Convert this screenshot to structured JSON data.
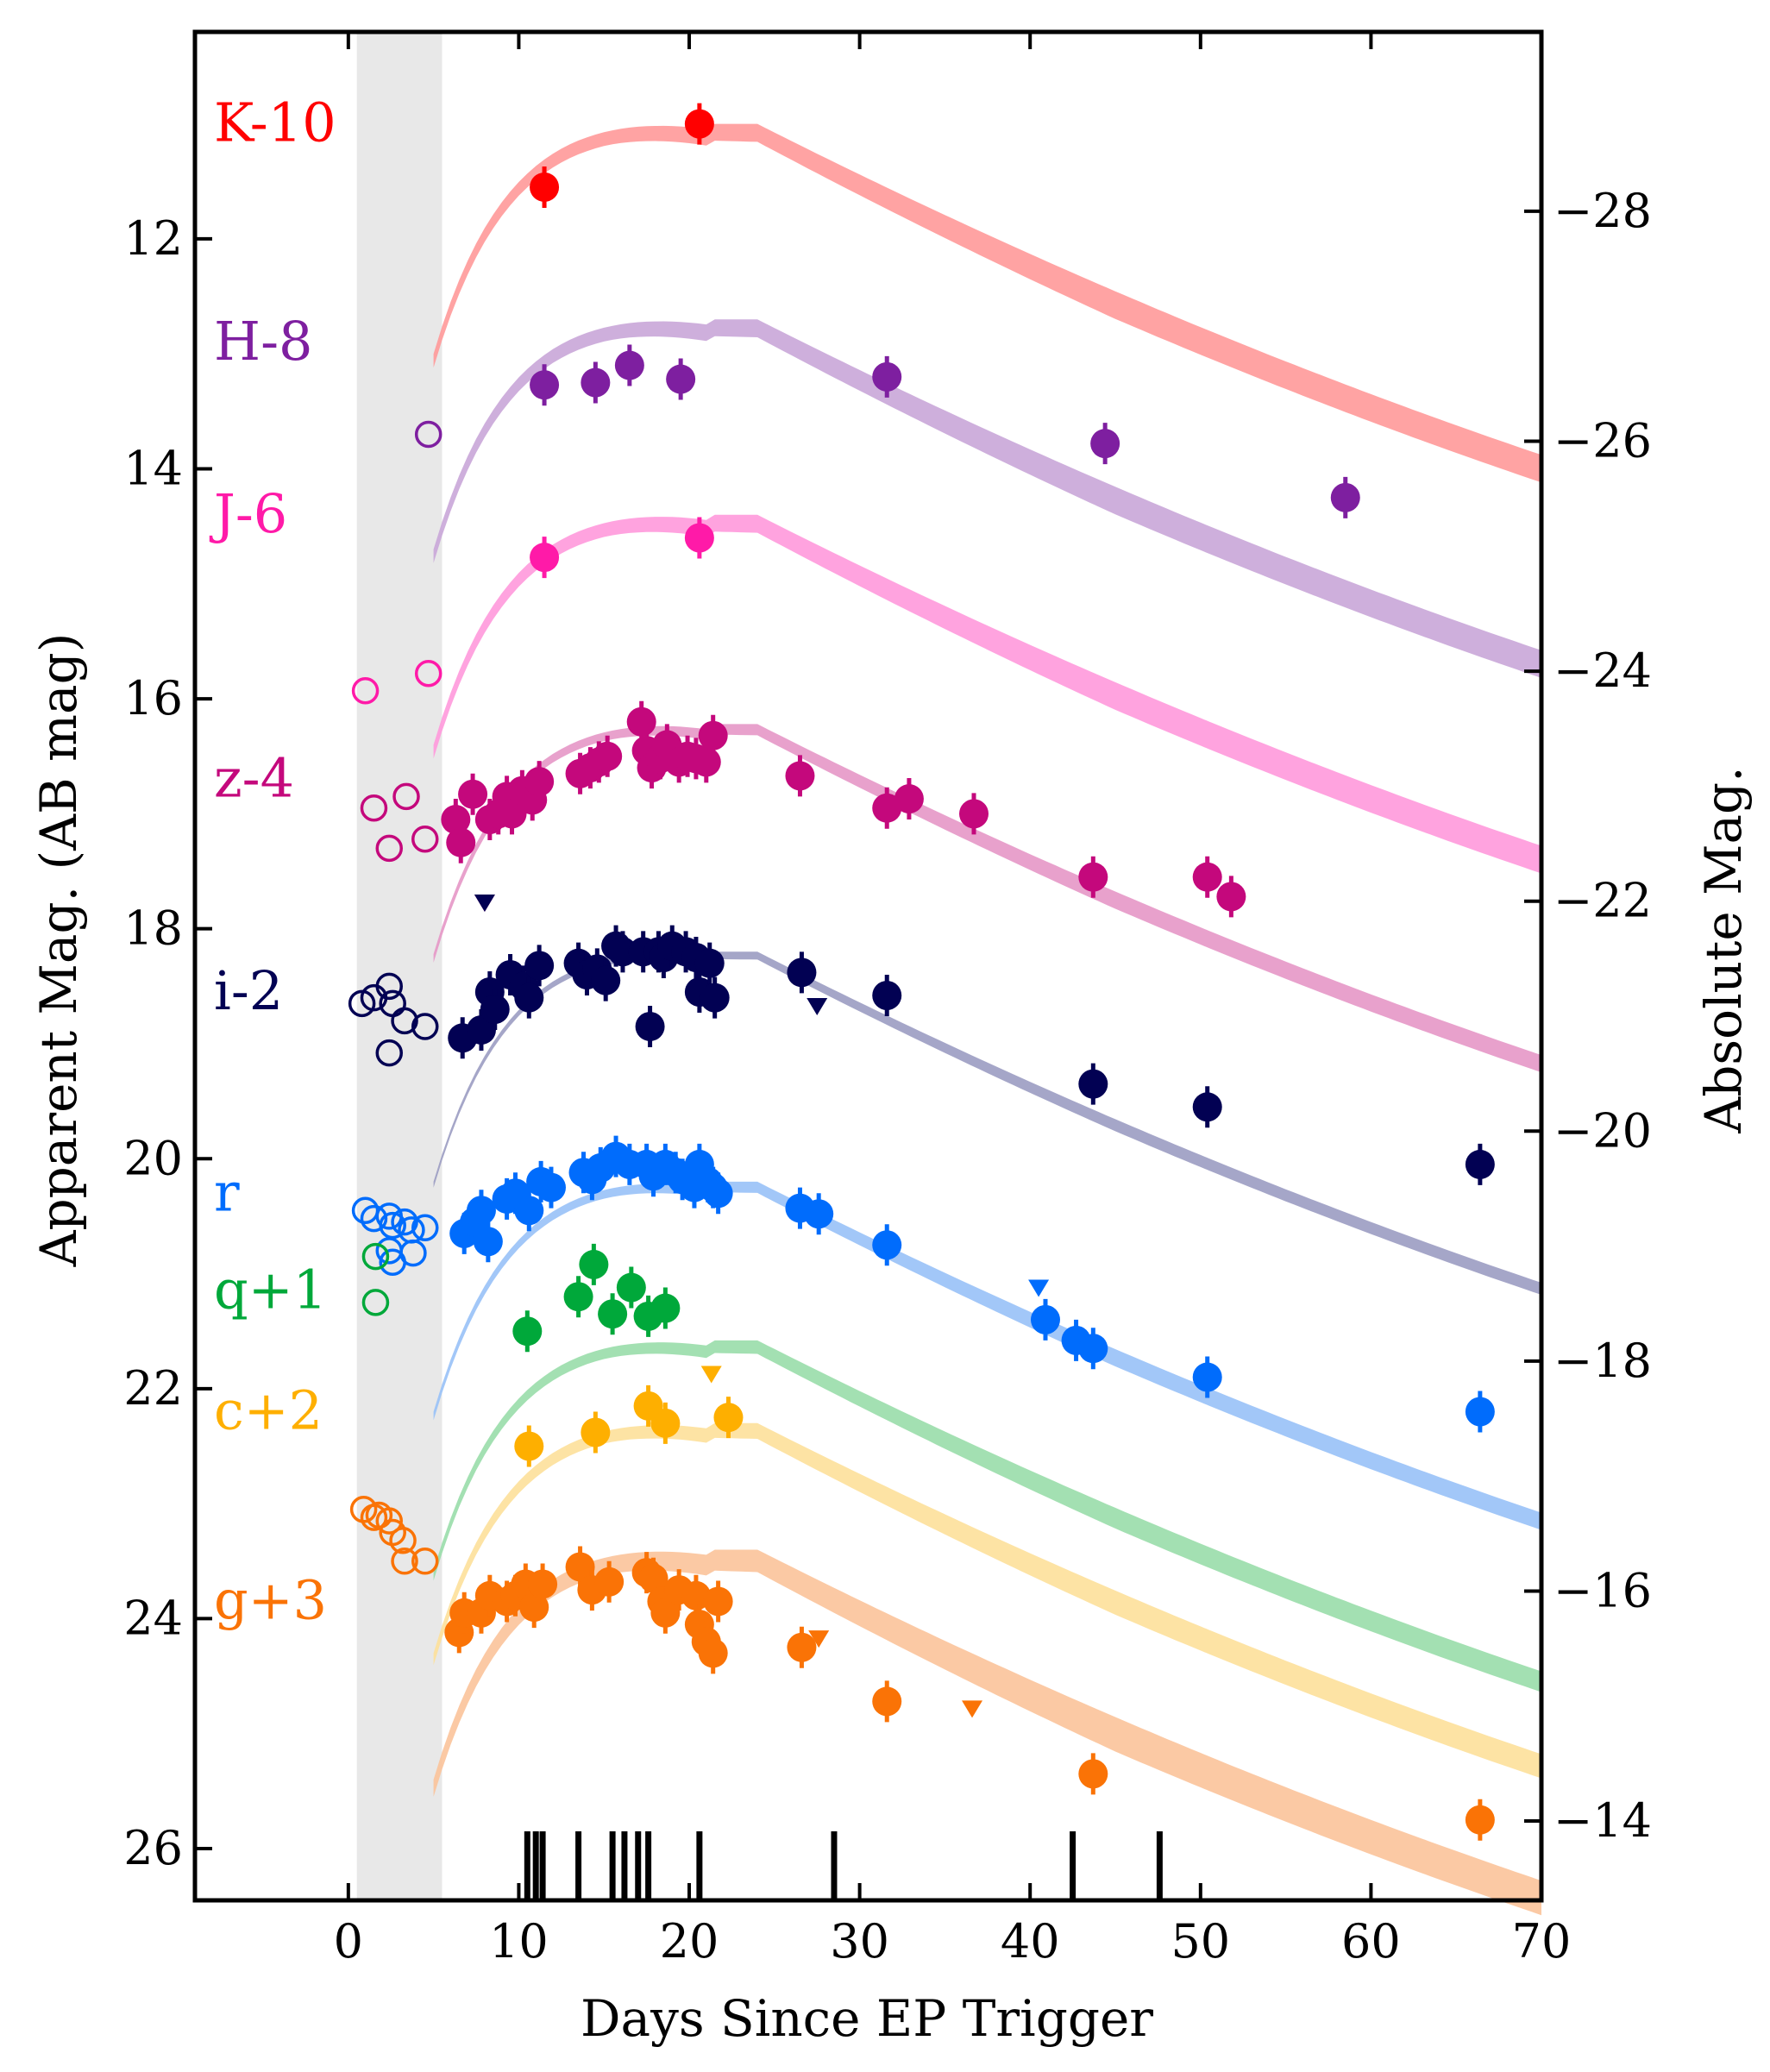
{
  "chart_data": {
    "type": "scatter",
    "title": "",
    "xlabel": "Days Since EP Trigger",
    "ylabel": "Apparent Mag. (AB mag)",
    "ylabel_right": "Absolute Mag.",
    "xlim": [
      -9,
      70
    ],
    "ylim": [
      26.45,
      10.2
    ],
    "x_ticks": [
      0,
      10,
      20,
      30,
      40,
      50,
      60,
      70
    ],
    "y_ticks": [
      12,
      14,
      16,
      18,
      20,
      22,
      24,
      26
    ],
    "abs_offset": 39.76,
    "abs_ticks": [
      -28,
      -26,
      -24,
      -22,
      -20,
      -18,
      -16,
      -14
    ],
    "shaded_region": [
      0.5,
      5.5
    ],
    "epoch_ticks": [
      10.5,
      11.0,
      11.4,
      13.5,
      15.5,
      16.2,
      17.0,
      17.6,
      20.6,
      28.5,
      42.5,
      47.6
    ],
    "series": [
      {
        "name": "K-10",
        "color": "#ff0000",
        "curve_color": "#ff9999",
        "peak": 11.0,
        "thick": 0.16,
        "points": [
          [
            11.5,
            11.55
          ],
          [
            20.6,
            11.0
          ]
        ],
        "open": [],
        "limits": []
      },
      {
        "name": "H-8",
        "color": "#7e1fa0",
        "curve_color": "#c9a6d8",
        "peak": 12.7,
        "thick": 0.16,
        "points": [
          [
            11.5,
            13.27
          ],
          [
            14.5,
            13.25
          ],
          [
            16.5,
            13.1
          ],
          [
            19.5,
            13.22
          ],
          [
            31.6,
            13.2
          ],
          [
            44.4,
            13.78
          ],
          [
            58.5,
            14.25
          ]
        ],
        "open": [
          [
            4.7,
            13.7
          ]
        ],
        "limits": []
      },
      {
        "name": "J-6",
        "color": "#ff1aa8",
        "curve_color": "#ff99dc",
        "peak": 14.4,
        "thick": 0.16,
        "points": [
          [
            11.5,
            14.77
          ],
          [
            20.6,
            14.6
          ]
        ],
        "open": [
          [
            1.0,
            15.93
          ],
          [
            4.7,
            15.78
          ]
        ],
        "limits": []
      },
      {
        "name": "z-4",
        "color": "#c4087c",
        "curve_color": "#e697c6",
        "peak": 16.22,
        "thick": 0.1,
        "points": [
          [
            6.3,
            17.05
          ],
          [
            6.6,
            17.25
          ],
          [
            7.3,
            16.83
          ],
          [
            8.3,
            17.05
          ],
          [
            8.8,
            17.0
          ],
          [
            9.3,
            16.85
          ],
          [
            9.6,
            17.0
          ],
          [
            10.2,
            16.8
          ],
          [
            10.8,
            16.88
          ],
          [
            11.2,
            16.72
          ],
          [
            13.6,
            16.65
          ],
          [
            14.2,
            16.6
          ],
          [
            14.7,
            16.55
          ],
          [
            15.2,
            16.5
          ],
          [
            17.2,
            16.2
          ],
          [
            17.5,
            16.45
          ],
          [
            17.8,
            16.6
          ],
          [
            18.3,
            16.52
          ],
          [
            18.7,
            16.4
          ],
          [
            19.4,
            16.55
          ],
          [
            19.9,
            16.5
          ],
          [
            20.4,
            16.52
          ],
          [
            21.0,
            16.55
          ],
          [
            21.4,
            16.32
          ],
          [
            26.5,
            16.67
          ],
          [
            31.6,
            16.95
          ],
          [
            32.9,
            16.87
          ],
          [
            36.7,
            17.0
          ],
          [
            43.7,
            17.55
          ],
          [
            50.4,
            17.55
          ],
          [
            51.8,
            17.72
          ]
        ],
        "open": [
          [
            1.5,
            16.95
          ],
          [
            2.4,
            17.3
          ],
          [
            3.4,
            16.85
          ],
          [
            4.5,
            17.22
          ]
        ],
        "limits": [
          [
            8.0,
            17.77
          ]
        ]
      },
      {
        "name": "i-2",
        "color": "#020153",
        "curve_color": "#9b9cc2",
        "peak": 18.2,
        "thick": 0.07,
        "points": [
          [
            6.7,
            18.95
          ],
          [
            7.8,
            18.88
          ],
          [
            8.3,
            18.55
          ],
          [
            8.6,
            18.7
          ],
          [
            9.5,
            18.4
          ],
          [
            10.3,
            18.5
          ],
          [
            10.6,
            18.6
          ],
          [
            11.2,
            18.32
          ],
          [
            13.5,
            18.3
          ],
          [
            14.0,
            18.4
          ],
          [
            14.6,
            18.35
          ],
          [
            15.1,
            18.45
          ],
          [
            15.7,
            18.15
          ],
          [
            16.1,
            18.2
          ],
          [
            17.3,
            18.2
          ],
          [
            17.7,
            18.85
          ],
          [
            18.2,
            18.2
          ],
          [
            18.5,
            18.25
          ],
          [
            19.0,
            18.15
          ],
          [
            19.8,
            18.2
          ],
          [
            20.4,
            18.25
          ],
          [
            20.6,
            18.55
          ],
          [
            21.2,
            18.3
          ],
          [
            21.5,
            18.6
          ],
          [
            26.6,
            18.38
          ],
          [
            31.6,
            18.58
          ],
          [
            43.7,
            19.35
          ],
          [
            50.4,
            19.55
          ],
          [
            66.4,
            20.05
          ]
        ],
        "open": [
          [
            0.8,
            18.65
          ],
          [
            1.5,
            18.6
          ],
          [
            2.4,
            18.5
          ],
          [
            2.6,
            18.65
          ],
          [
            3.3,
            18.8
          ],
          [
            2.4,
            19.08
          ],
          [
            4.5,
            18.85
          ]
        ],
        "limits": [
          [
            8.0,
            17.77
          ],
          [
            27.5,
            18.67
          ]
        ]
      },
      {
        "name": "r",
        "color": "#006cfc",
        "curve_color": "#98c1f7",
        "peak": 20.2,
        "thick": 0.1,
        "points": [
          [
            6.8,
            20.65
          ],
          [
            7.4,
            20.55
          ],
          [
            7.8,
            20.45
          ],
          [
            8.2,
            20.72
          ],
          [
            9.3,
            20.35
          ],
          [
            9.8,
            20.3
          ],
          [
            10.6,
            20.45
          ],
          [
            11.3,
            20.2
          ],
          [
            11.9,
            20.25
          ],
          [
            13.8,
            20.12
          ],
          [
            14.3,
            20.18
          ],
          [
            14.8,
            20.08
          ],
          [
            15.7,
            19.98
          ],
          [
            16.5,
            20.05
          ],
          [
            17.5,
            20.05
          ],
          [
            17.9,
            20.15
          ],
          [
            18.6,
            20.05
          ],
          [
            19.2,
            20.12
          ],
          [
            19.6,
            20.18
          ],
          [
            20.3,
            20.25
          ],
          [
            20.6,
            20.05
          ],
          [
            21.1,
            20.2
          ],
          [
            21.4,
            20.25
          ],
          [
            21.7,
            20.3
          ],
          [
            26.5,
            20.43
          ],
          [
            27.6,
            20.48
          ],
          [
            31.6,
            20.75
          ],
          [
            40.9,
            21.4
          ],
          [
            42.7,
            21.58
          ],
          [
            43.7,
            21.65
          ],
          [
            50.4,
            21.9
          ],
          [
            66.4,
            22.2
          ]
        ],
        "open": [
          [
            1.0,
            20.45
          ],
          [
            1.5,
            20.52
          ],
          [
            2.4,
            20.5
          ],
          [
            2.6,
            20.58
          ],
          [
            3.3,
            20.55
          ],
          [
            3.7,
            20.62
          ],
          [
            4.5,
            20.6
          ],
          [
            2.4,
            20.8
          ],
          [
            2.6,
            20.9
          ],
          [
            3.8,
            20.82
          ]
        ],
        "limits": [
          [
            40.5,
            21.12
          ]
        ]
      },
      {
        "name": "q+1",
        "color": "#00a83a",
        "curve_color": "#99ddaa",
        "peak": 21.58,
        "thick": 0.12,
        "points": [
          [
            10.5,
            21.5
          ],
          [
            13.5,
            21.2
          ],
          [
            14.4,
            20.92
          ],
          [
            15.5,
            21.35
          ],
          [
            16.6,
            21.12
          ],
          [
            17.6,
            21.37
          ],
          [
            18.6,
            21.3
          ]
        ],
        "open": [
          [
            1.6,
            20.85
          ],
          [
            1.6,
            21.25
          ]
        ],
        "limits": []
      },
      {
        "name": "c+2",
        "color": "#feaf00",
        "curve_color": "#fde09a",
        "peak": 22.3,
        "thick": 0.14,
        "points": [
          [
            10.6,
            22.5
          ],
          [
            14.5,
            22.38
          ],
          [
            17.6,
            22.15
          ],
          [
            18.6,
            22.3
          ],
          [
            22.3,
            22.25
          ]
        ],
        "open": [],
        "limits": [
          [
            21.3,
            21.87
          ]
        ]
      },
      {
        "name": "g+3",
        "color": "#fa7306",
        "curve_color": "#fbc39a",
        "peak": 23.4,
        "thick": 0.2,
        "points": [
          [
            6.5,
            24.12
          ],
          [
            6.8,
            23.95
          ],
          [
            7.8,
            23.95
          ],
          [
            8.3,
            23.8
          ],
          [
            9.3,
            23.85
          ],
          [
            9.8,
            23.8
          ],
          [
            10.4,
            23.7
          ],
          [
            10.9,
            23.9
          ],
          [
            11.4,
            23.7
          ],
          [
            13.6,
            23.55
          ],
          [
            14.3,
            23.75
          ],
          [
            15.3,
            23.68
          ],
          [
            17.5,
            23.6
          ],
          [
            17.9,
            23.65
          ],
          [
            18.4,
            23.85
          ],
          [
            18.6,
            23.95
          ],
          [
            19.4,
            23.75
          ],
          [
            20.4,
            23.8
          ],
          [
            20.6,
            24.05
          ],
          [
            21.0,
            24.2
          ],
          [
            21.4,
            24.3
          ],
          [
            21.7,
            23.85
          ],
          [
            26.6,
            24.25
          ],
          [
            31.6,
            24.72
          ],
          [
            43.7,
            25.35
          ],
          [
            66.4,
            25.75
          ]
        ],
        "open": [
          [
            0.9,
            23.05
          ],
          [
            1.5,
            23.12
          ],
          [
            1.8,
            23.1
          ],
          [
            2.4,
            23.15
          ],
          [
            2.6,
            23.25
          ],
          [
            3.2,
            23.32
          ],
          [
            3.3,
            23.5
          ],
          [
            4.5,
            23.5
          ]
        ],
        "limits": [
          [
            27.6,
            24.17
          ],
          [
            36.6,
            24.78
          ]
        ]
      }
    ]
  }
}
